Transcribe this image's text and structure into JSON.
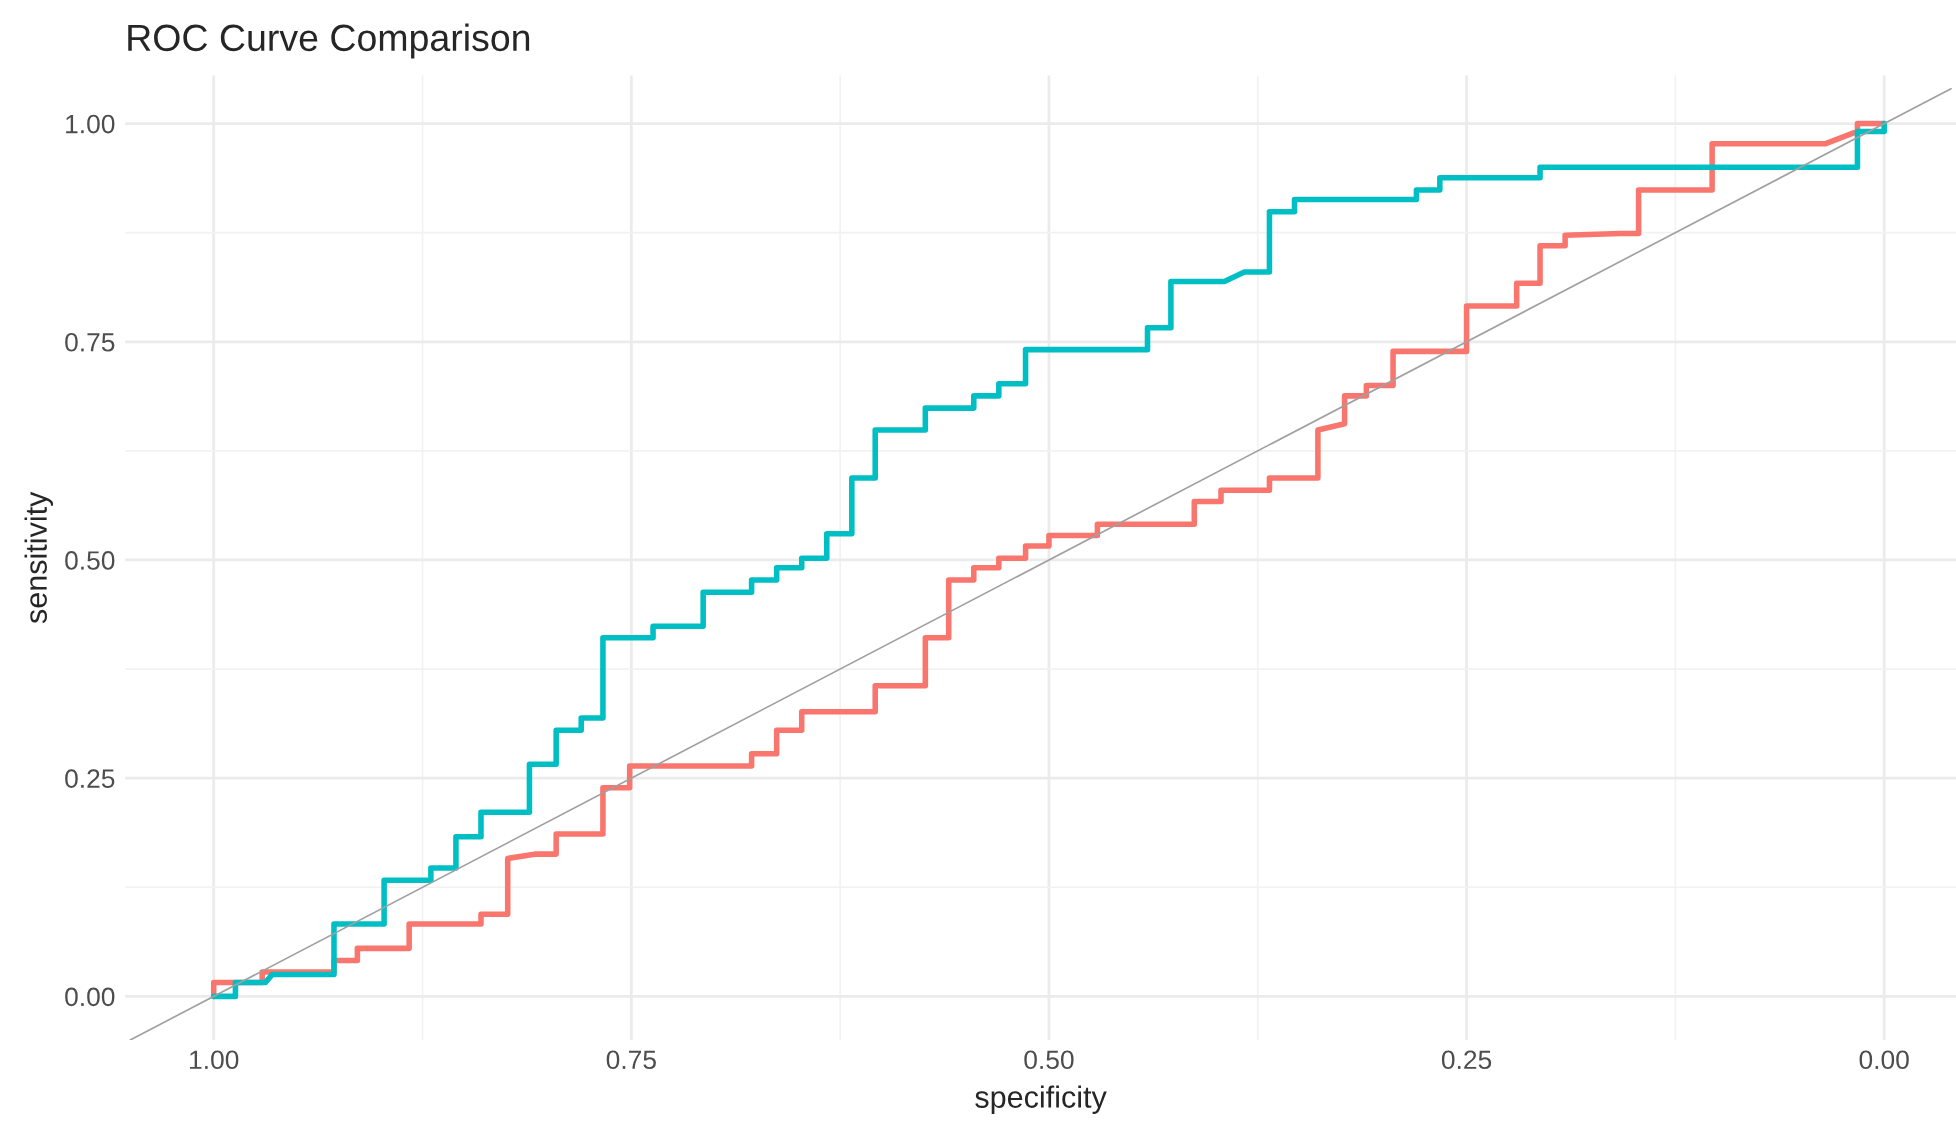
{
  "chart_data": {
    "type": "step",
    "title": "ROC Curve Comparison",
    "xlabel": "specificity",
    "ylabel": "sensitivity",
    "xlim": [
      1.053,
      -0.043
    ],
    "ylim": [
      -0.05,
      1.055
    ],
    "xticks": [
      {
        "value": 1,
        "label": "1.00"
      },
      {
        "value": 0.75,
        "label": "0.75"
      },
      {
        "value": 0.5,
        "label": "0.50"
      },
      {
        "value": 0.25,
        "label": "0.25"
      },
      {
        "value": 0,
        "label": "0.00"
      }
    ],
    "yticks": [
      {
        "value": 0,
        "label": "0.00"
      },
      {
        "value": 0.25,
        "label": "0.25"
      },
      {
        "value": 0.5,
        "label": "0.50"
      },
      {
        "value": 0.75,
        "label": "0.75"
      },
      {
        "value": 1,
        "label": "1.00"
      }
    ],
    "grid": true,
    "series": [
      {
        "color": "#f8766d",
        "x": [
          1.0,
          1.0,
          0.971,
          0.971,
          0.959,
          0.928,
          0.928,
          0.914,
          0.914,
          0.883,
          0.883,
          0.84,
          0.84,
          0.824,
          0.824,
          0.807,
          0.795,
          0.795,
          0.767,
          0.767,
          0.751,
          0.751,
          0.678,
          0.678,
          0.663,
          0.663,
          0.648,
          0.648,
          0.604,
          0.604,
          0.574,
          0.574,
          0.56,
          0.56,
          0.545,
          0.545,
          0.53,
          0.53,
          0.514,
          0.514,
          0.5,
          0.5,
          0.471,
          0.471,
          0.413,
          0.413,
          0.397,
          0.397,
          0.368,
          0.368,
          0.339,
          0.339,
          0.323,
          0.323,
          0.31,
          0.31,
          0.294,
          0.294,
          0.25,
          0.25,
          0.22,
          0.22,
          0.206,
          0.206,
          0.191,
          0.191,
          0.158,
          0.147,
          0.147,
          0.103,
          0.103,
          0.035,
          0.016,
          0.016,
          0.0
        ],
        "values": [
          0,
          0.016,
          0.016,
          0.028,
          0.028,
          0.028,
          0.041,
          0.041,
          0.055,
          0.055,
          0.083,
          0.083,
          0.094,
          0.094,
          0.158,
          0.163,
          0.163,
          0.186,
          0.186,
          0.239,
          0.239,
          0.264,
          0.264,
          0.278,
          0.278,
          0.305,
          0.305,
          0.326,
          0.326,
          0.356,
          0.356,
          0.411,
          0.411,
          0.477,
          0.477,
          0.491,
          0.491,
          0.502,
          0.502,
          0.516,
          0.516,
          0.528,
          0.528,
          0.541,
          0.541,
          0.567,
          0.567,
          0.58,
          0.58,
          0.594,
          0.594,
          0.649,
          0.656,
          0.688,
          0.688,
          0.7,
          0.7,
          0.739,
          0.739,
          0.791,
          0.791,
          0.817,
          0.817,
          0.86,
          0.86,
          0.872,
          0.874,
          0.874,
          0.924,
          0.924,
          0.977,
          0.977,
          0.991,
          1.0,
          1.0
        ]
      },
      {
        "color": "#00bfc4",
        "x": [
          1.0,
          0.987,
          0.987,
          0.969,
          0.965,
          0.928,
          0.928,
          0.898,
          0.898,
          0.87,
          0.87,
          0.855,
          0.855,
          0.84,
          0.84,
          0.811,
          0.811,
          0.795,
          0.795,
          0.78,
          0.78,
          0.767,
          0.767,
          0.737,
          0.737,
          0.707,
          0.707,
          0.678,
          0.678,
          0.663,
          0.663,
          0.648,
          0.648,
          0.633,
          0.633,
          0.618,
          0.618,
          0.604,
          0.604,
          0.574,
          0.574,
          0.545,
          0.545,
          0.53,
          0.53,
          0.514,
          0.514,
          0.441,
          0.441,
          0.427,
          0.427,
          0.395,
          0.383,
          0.368,
          0.368,
          0.353,
          0.353,
          0.28,
          0.28,
          0.266,
          0.266,
          0.206,
          0.206,
          0.016,
          0.016,
          0.0,
          0.0
        ],
        "values": [
          0,
          0,
          0.016,
          0.016,
          0.025,
          0.025,
          0.083,
          0.083,
          0.133,
          0.133,
          0.147,
          0.147,
          0.183,
          0.183,
          0.211,
          0.211,
          0.266,
          0.266,
          0.305,
          0.305,
          0.319,
          0.319,
          0.411,
          0.411,
          0.424,
          0.424,
          0.463,
          0.463,
          0.477,
          0.477,
          0.491,
          0.491,
          0.502,
          0.502,
          0.53,
          0.53,
          0.594,
          0.594,
          0.649,
          0.649,
          0.674,
          0.674,
          0.688,
          0.688,
          0.702,
          0.702,
          0.741,
          0.741,
          0.766,
          0.766,
          0.819,
          0.819,
          0.83,
          0.83,
          0.899,
          0.899,
          0.913,
          0.913,
          0.924,
          0.924,
          0.938,
          0.938,
          0.95,
          0.95,
          0.991,
          0.991,
          1.0
        ]
      },
      {
        "type": "line",
        "color": "#a0a0a0",
        "x": [
          1.05,
          -0.04
        ],
        "values": [
          -0.05,
          1.04
        ]
      }
    ]
  }
}
